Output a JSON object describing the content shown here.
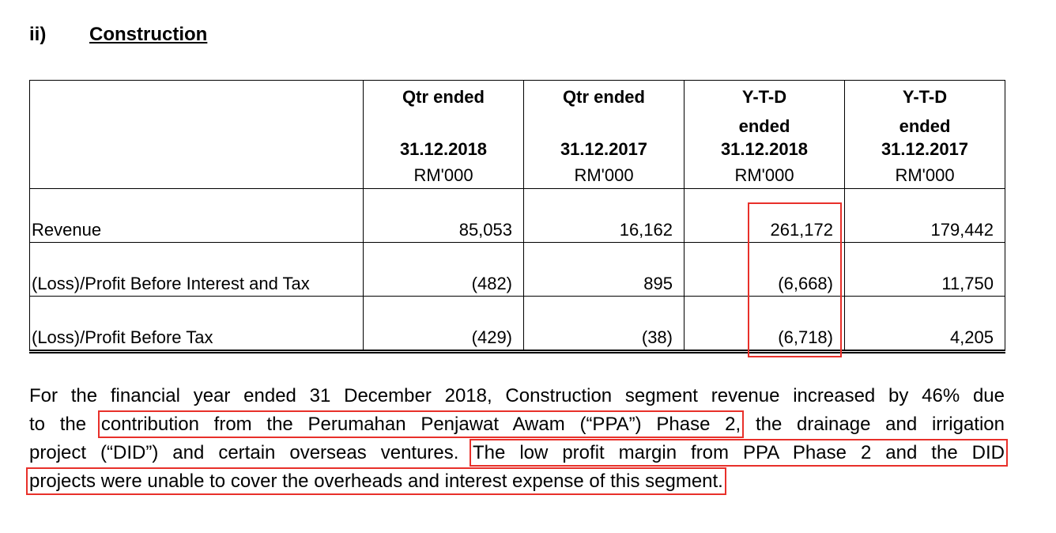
{
  "heading": {
    "number": "ii)",
    "title": "Construction"
  },
  "table": {
    "columns": [
      {
        "title_lines": [
          "Qtr ended"
        ],
        "date": "31.12.2018",
        "unit": "RM'000"
      },
      {
        "title_lines": [
          "Qtr ended"
        ],
        "date": "31.12.2017",
        "unit": "RM'000"
      },
      {
        "title_lines": [
          "Y-T-D",
          "ended"
        ],
        "date": "31.12.2018",
        "unit": "RM'000"
      },
      {
        "title_lines": [
          "Y-T-D",
          "ended"
        ],
        "date": "31.12.2017",
        "unit": "RM'000"
      }
    ],
    "rows": [
      [
        "Revenue",
        "85,053",
        "16,162",
        "261,172",
        "179,442"
      ],
      [
        "(Loss)/Profit Before Interest and Tax",
        "(482)",
        "895",
        "(6,668)",
        "11,750"
      ],
      [
        "(Loss)/Profit Before Tax",
        "(429)",
        "(38)",
        "(6,718)",
        "4,205"
      ]
    ]
  },
  "paragraph": {
    "lines": [
      [
        "For the financial year ended 31 December 2018, Construction segment revenue increased by 46% due"
      ],
      [
        "to the ",
        "contribution from the Perumahan Penjawat Awam (“PPA”) Phase 2,",
        " the drainage and irrigation"
      ],
      [
        "project (“DID”) and certain overseas ventures. ",
        "The low profit margin from PPA Phase 2 and the DID"
      ],
      [
        "projects were unable to cover the overheads and interest expense of this segment."
      ]
    ]
  }
}
